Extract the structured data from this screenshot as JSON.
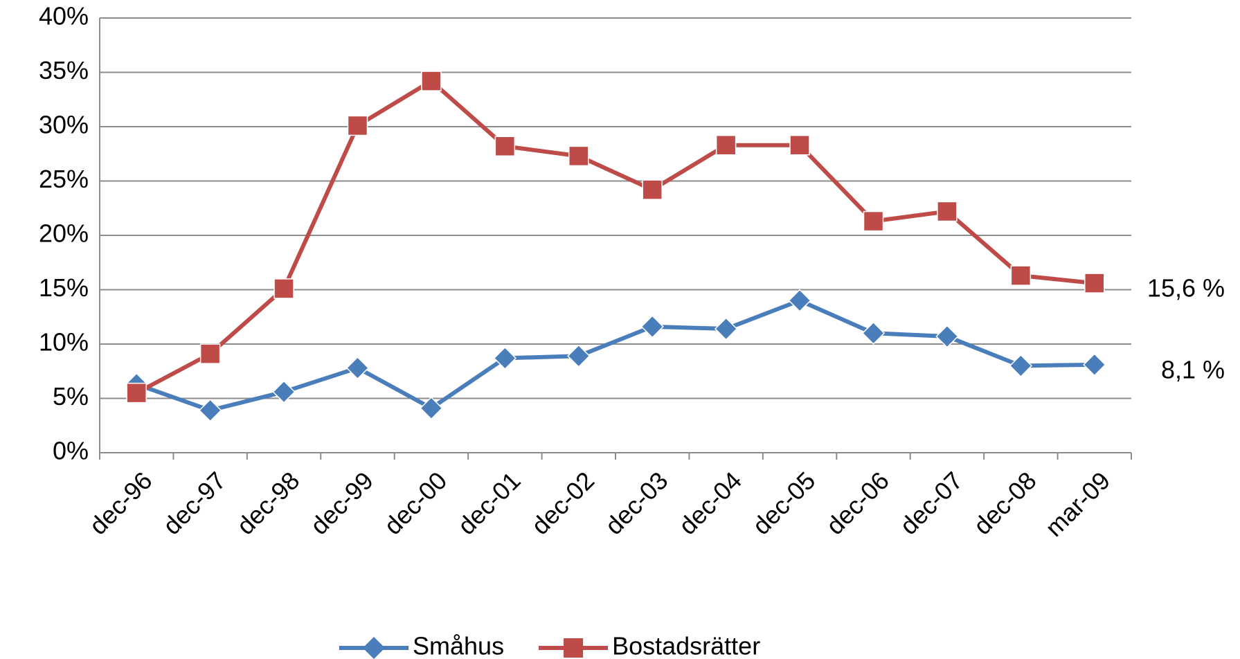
{
  "chart_data": {
    "type": "line",
    "categories": [
      "dec-96",
      "dec-97",
      "dec-98",
      "dec-99",
      "dec-00",
      "dec-01",
      "dec-02",
      "dec-03",
      "dec-04",
      "dec-05",
      "dec-06",
      "dec-07",
      "dec-08",
      "mar-09"
    ],
    "series": [
      {
        "name": "Småhus",
        "color": "#4a7ebb",
        "marker": "diamond",
        "values": [
          6.3,
          3.9,
          5.6,
          7.8,
          4.1,
          8.7,
          8.9,
          11.6,
          11.4,
          14.0,
          11.0,
          10.7,
          8.0,
          8.1
        ],
        "value_labels": [
          null,
          null,
          null,
          null,
          null,
          null,
          null,
          null,
          null,
          null,
          null,
          null,
          null,
          "8,1 %"
        ]
      },
      {
        "name": "Bostadsrätter",
        "color": "#be4b48",
        "marker": "square",
        "values": [
          5.5,
          9.1,
          15.1,
          30.1,
          34.2,
          28.2,
          27.3,
          24.2,
          28.3,
          28.3,
          21.3,
          22.2,
          16.3,
          15.6
        ],
        "value_labels": [
          null,
          null,
          null,
          null,
          null,
          null,
          null,
          null,
          null,
          null,
          null,
          null,
          null,
          "15,6 %"
        ]
      }
    ],
    "ylim": [
      0,
      40
    ],
    "yticks": [
      {
        "value": 0,
        "label": "0%"
      },
      {
        "value": 5,
        "label": "5%"
      },
      {
        "value": 10,
        "label": "10%"
      },
      {
        "value": 15,
        "label": "15%"
      },
      {
        "value": 20,
        "label": "20%"
      },
      {
        "value": 25,
        "label": "25%"
      },
      {
        "value": 30,
        "label": "30%"
      },
      {
        "value": 35,
        "label": "35%"
      },
      {
        "value": 40,
        "label": "40%"
      }
    ],
    "grid": true,
    "legend": "bottom"
  }
}
